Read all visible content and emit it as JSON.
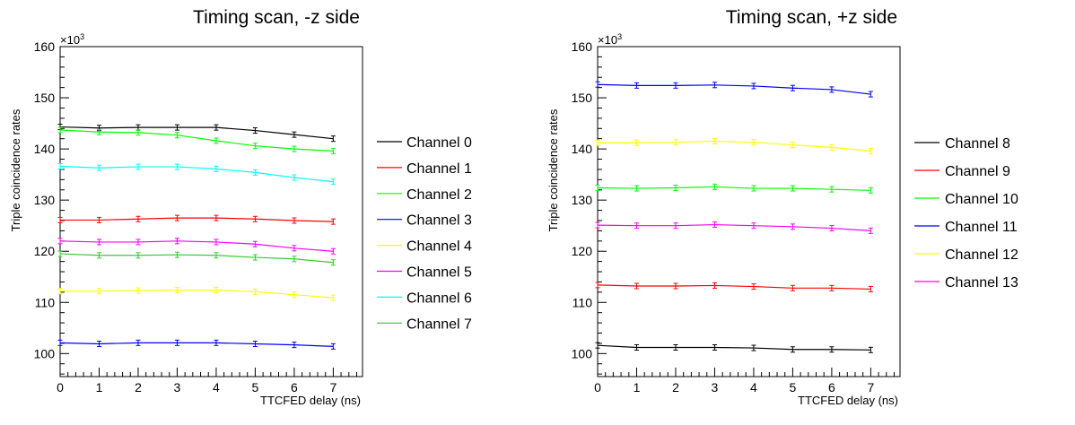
{
  "chart_data": [
    {
      "type": "line",
      "title": "Timing scan, -z side",
      "xlabel": "TTCFED delay (ns)",
      "ylabel": "Triple coincidence rates",
      "yexponent_label": "×10",
      "yexponent_sup": "3",
      "xlim": [
        0,
        7.75
      ],
      "ylim": [
        95.5,
        160
      ],
      "xticks": [
        0,
        1,
        2,
        3,
        4,
        5,
        6,
        7
      ],
      "yticks": [
        100,
        110,
        120,
        130,
        140,
        150,
        160
      ],
      "grid": false,
      "legend_position": "right",
      "x": [
        0,
        1,
        2,
        3,
        4,
        5,
        6,
        7
      ],
      "series": [
        {
          "name": "Channel 0",
          "color": "#000000",
          "values": [
            144.3,
            144.1,
            144.2,
            144.2,
            144.2,
            143.6,
            142.8,
            142.0
          ]
        },
        {
          "name": "Channel 1",
          "color": "#ff0000",
          "values": [
            126.1,
            126.1,
            126.3,
            126.5,
            126.5,
            126.3,
            126.0,
            125.8
          ]
        },
        {
          "name": "Channel 2",
          "color": "#00ff00",
          "values": [
            143.7,
            143.3,
            143.2,
            142.7,
            141.6,
            140.6,
            140.0,
            139.6
          ]
        },
        {
          "name": "Channel 3",
          "color": "#0000ff",
          "values": [
            102.1,
            101.9,
            102.1,
            102.1,
            102.1,
            101.9,
            101.7,
            101.4
          ]
        },
        {
          "name": "Channel 4",
          "color": "#ffff00",
          "values": [
            112.2,
            112.2,
            112.3,
            112.4,
            112.4,
            112.1,
            111.5,
            110.9
          ]
        },
        {
          "name": "Channel 5",
          "color": "#ff00ff",
          "values": [
            122.0,
            121.8,
            121.8,
            122.0,
            121.8,
            121.4,
            120.6,
            120.0
          ]
        },
        {
          "name": "Channel 6",
          "color": "#00ffff",
          "values": [
            136.6,
            136.3,
            136.5,
            136.5,
            136.1,
            135.4,
            134.4,
            133.6
          ]
        },
        {
          "name": "Channel 7",
          "color": "#33cc33",
          "values": [
            119.5,
            119.2,
            119.2,
            119.3,
            119.2,
            118.8,
            118.5,
            117.8
          ]
        }
      ]
    },
    {
      "type": "line",
      "title": "Timing scan, +z side",
      "xlabel": "TTCFED delay (ns)",
      "ylabel": "Triple coincidence rates",
      "yexponent_label": "×10",
      "yexponent_sup": "3",
      "xlim": [
        0,
        7.75
      ],
      "ylim": [
        95.5,
        160
      ],
      "xticks": [
        0,
        1,
        2,
        3,
        4,
        5,
        6,
        7
      ],
      "yticks": [
        100,
        110,
        120,
        130,
        140,
        150,
        160
      ],
      "grid": false,
      "legend_position": "right",
      "x": [
        0,
        1,
        2,
        3,
        4,
        5,
        6,
        7
      ],
      "series": [
        {
          "name": "Channel 8",
          "color": "#000000",
          "values": [
            101.6,
            101.2,
            101.2,
            101.2,
            101.1,
            100.8,
            100.8,
            100.7
          ]
        },
        {
          "name": "Channel 9",
          "color": "#ff0000",
          "values": [
            113.4,
            113.2,
            113.2,
            113.3,
            113.1,
            112.8,
            112.8,
            112.6
          ]
        },
        {
          "name": "Channel 10",
          "color": "#00ff00",
          "values": [
            132.4,
            132.3,
            132.4,
            132.6,
            132.3,
            132.3,
            132.1,
            131.9
          ]
        },
        {
          "name": "Channel 11",
          "color": "#0000ff",
          "values": [
            152.6,
            152.4,
            152.4,
            152.5,
            152.3,
            151.9,
            151.6,
            150.7
          ]
        },
        {
          "name": "Channel 12",
          "color": "#ffff00",
          "values": [
            141.2,
            141.2,
            141.3,
            141.5,
            141.3,
            140.8,
            140.3,
            139.6
          ]
        },
        {
          "name": "Channel 13",
          "color": "#ff00ff",
          "values": [
            125.1,
            125.0,
            125.0,
            125.2,
            125.0,
            124.8,
            124.5,
            124.0
          ]
        }
      ]
    }
  ]
}
